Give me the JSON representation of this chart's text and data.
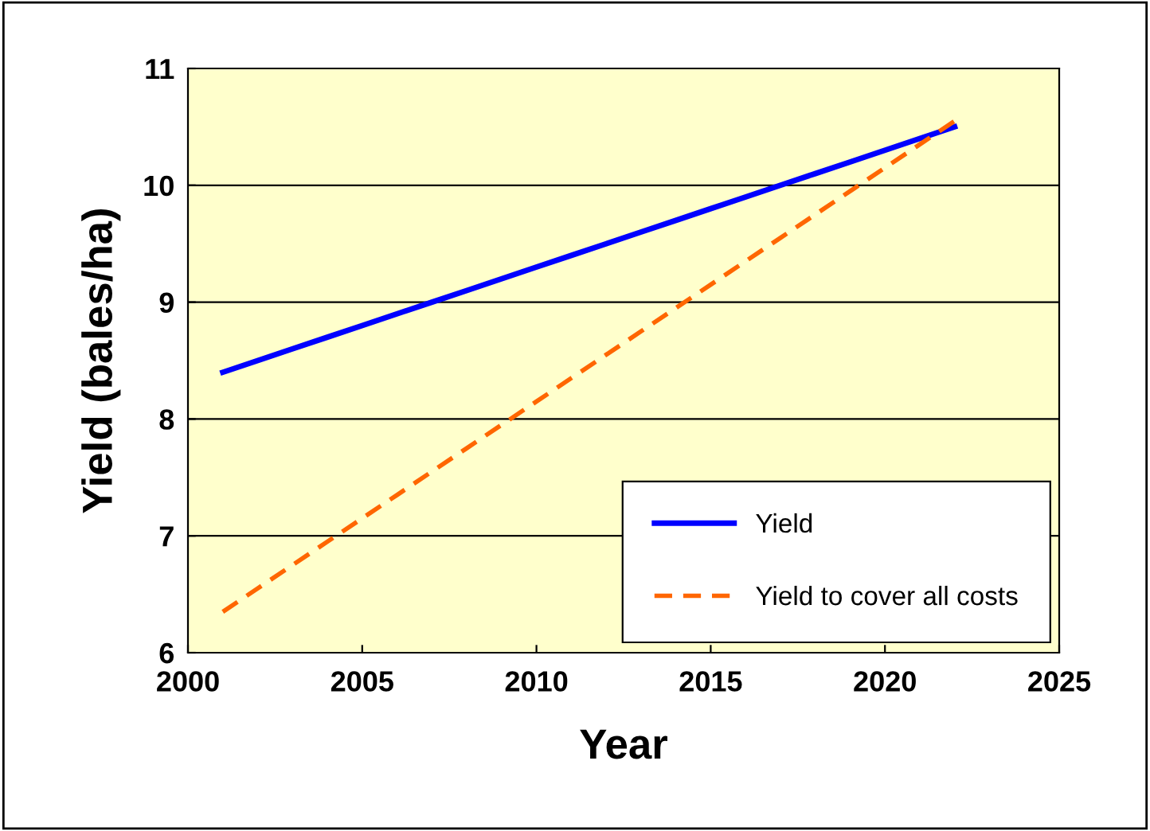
{
  "chart_data": {
    "type": "line",
    "xlabel": "Year",
    "ylabel": "Yield (bales/ha)",
    "x": [
      2001,
      2002,
      2003,
      2004,
      2005,
      2006,
      2007,
      2008,
      2009,
      2010,
      2011,
      2012,
      2013,
      2014,
      2015,
      2016,
      2017,
      2018,
      2019,
      2020,
      2021,
      2022
    ],
    "series": [
      {
        "name": "Yield",
        "color": "#0000ff",
        "line_style": "solid",
        "values": [
          8.4,
          8.5,
          8.6,
          8.7,
          8.8,
          8.9,
          9.0,
          9.1,
          9.2,
          9.3,
          9.4,
          9.5,
          9.6,
          9.7,
          9.8,
          9.9,
          10.0,
          10.1,
          10.2,
          10.3,
          10.4,
          10.5
        ]
      },
      {
        "name": "Yield to cover all costs",
        "color": "#ff6600",
        "line_style": "dashed",
        "values": [
          6.35,
          6.55,
          6.75,
          6.95,
          7.15,
          7.35,
          7.55,
          7.75,
          7.95,
          8.15,
          8.35,
          8.55,
          8.75,
          8.95,
          9.15,
          9.35,
          9.55,
          9.75,
          9.95,
          10.15,
          10.35,
          10.55
        ]
      }
    ],
    "xlim": [
      2000,
      2025
    ],
    "xticks": [
      2000,
      2005,
      2010,
      2015,
      2020,
      2025
    ],
    "ylim": [
      6,
      11
    ],
    "yticks": [
      6,
      7,
      8,
      9,
      10,
      11
    ],
    "grid": "y",
    "legend": "bottom right",
    "marker": "none"
  }
}
